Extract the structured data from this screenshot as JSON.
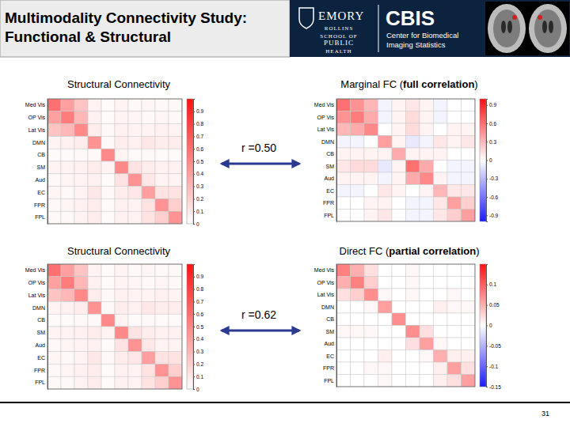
{
  "header": {
    "title": [
      "Multimodality Connectivity Study:",
      "Functional & Structural"
    ],
    "emory": "EMORY",
    "school": [
      "ROLLINS",
      "SCHOOL OF",
      "PUBLIC",
      "HEALTH"
    ],
    "center": "CBIS",
    "center_name": [
      "Center for Biomedical",
      "Imaging Statistics"
    ]
  },
  "chart_data": [
    {
      "type": "heatmap",
      "title": "Structural Connectivity",
      "categories": [
        "Med Vis",
        "OP Vis",
        "Lat Vis",
        "DMN",
        "CB",
        "SM",
        "Aud",
        "EC",
        "FPR",
        "FPL"
      ],
      "cells": [
        [
          0.6,
          0.4,
          0.25,
          0.05,
          0.02,
          0.05,
          0.03,
          0.04,
          0.03,
          0.03
        ],
        [
          0.4,
          0.55,
          0.3,
          0.06,
          0.02,
          0.05,
          0.04,
          0.03,
          0.04,
          0.03
        ],
        [
          0.25,
          0.3,
          0.5,
          0.08,
          0.03,
          0.06,
          0.05,
          0.05,
          0.06,
          0.05
        ],
        [
          0.05,
          0.06,
          0.08,
          0.45,
          0.03,
          0.08,
          0.06,
          0.1,
          0.08,
          0.08
        ],
        [
          0.02,
          0.02,
          0.03,
          0.03,
          0.5,
          0.05,
          0.02,
          0.03,
          0.02,
          0.02
        ],
        [
          0.05,
          0.05,
          0.06,
          0.08,
          0.05,
          0.5,
          0.12,
          0.08,
          0.06,
          0.06
        ],
        [
          0.03,
          0.04,
          0.05,
          0.06,
          0.02,
          0.12,
          0.45,
          0.1,
          0.05,
          0.05
        ],
        [
          0.04,
          0.03,
          0.05,
          0.1,
          0.03,
          0.08,
          0.1,
          0.4,
          0.12,
          0.12
        ],
        [
          0.03,
          0.04,
          0.06,
          0.08,
          0.02,
          0.06,
          0.05,
          0.12,
          0.45,
          0.2
        ],
        [
          0.03,
          0.03,
          0.05,
          0.08,
          0.02,
          0.06,
          0.05,
          0.12,
          0.2,
          0.45
        ]
      ],
      "colorbar": {
        "range": [
          0,
          1
        ],
        "ticks": [
          0,
          0.1,
          0.2,
          0.3,
          0.4,
          0.5,
          0.6,
          0.7,
          0.8,
          0.9
        ]
      }
    },
    {
      "type": "heatmap",
      "title": "Marginal FC (full correlation)",
      "categories": [
        "Med Vis",
        "OP Vis",
        "Lat Vis",
        "DMN",
        "CB",
        "SM",
        "Aud",
        "EC",
        "FPR",
        "FPL"
      ],
      "cells": [
        [
          0.6,
          0.45,
          0.3,
          -0.05,
          0.05,
          0.1,
          0.05,
          -0.05,
          0,
          0
        ],
        [
          0.45,
          0.55,
          0.35,
          -0.05,
          0.05,
          0.15,
          0.05,
          -0.05,
          0,
          0
        ],
        [
          0.3,
          0.35,
          0.5,
          0,
          0.05,
          0.15,
          0.05,
          0,
          0.05,
          0.05
        ],
        [
          -0.05,
          -0.05,
          0,
          0.4,
          0.05,
          -0.1,
          -0.05,
          0.1,
          0.05,
          0.1
        ],
        [
          0.05,
          0.05,
          0.05,
          0.05,
          0.35,
          0.05,
          0.05,
          0.05,
          0,
          0
        ],
        [
          0.1,
          0.15,
          0.15,
          -0.1,
          0.05,
          0.6,
          0.35,
          0,
          -0.05,
          -0.05
        ],
        [
          0.05,
          0.05,
          0.05,
          -0.05,
          0.05,
          0.35,
          0.5,
          0.05,
          -0.05,
          -0.05
        ],
        [
          -0.05,
          -0.05,
          0,
          0.1,
          0.05,
          0,
          0.05,
          0.3,
          0.1,
          0.1
        ],
        [
          0,
          0,
          0.05,
          0.05,
          0,
          -0.05,
          -0.05,
          0.1,
          0.4,
          0.2
        ],
        [
          0,
          0,
          0.05,
          0.1,
          0,
          -0.05,
          -0.05,
          0.1,
          0.2,
          0.4
        ]
      ],
      "colorbar": {
        "range": [
          -1,
          1
        ],
        "ticks": [
          -0.9,
          -0.6,
          -0.3,
          0,
          0.3,
          0.6,
          0.9
        ]
      }
    },
    {
      "type": "heatmap",
      "title": "Structural Connectivity",
      "categories": [
        "Med Vis",
        "OP Vis",
        "Lat Vis",
        "DMN",
        "CB",
        "SM",
        "Aud",
        "EC",
        "FPR",
        "FPL"
      ],
      "cells": [
        [
          0.6,
          0.4,
          0.25,
          0.05,
          0.02,
          0.05,
          0.03,
          0.04,
          0.03,
          0.03
        ],
        [
          0.4,
          0.55,
          0.3,
          0.06,
          0.02,
          0.05,
          0.04,
          0.03,
          0.04,
          0.03
        ],
        [
          0.25,
          0.3,
          0.5,
          0.08,
          0.03,
          0.06,
          0.05,
          0.05,
          0.06,
          0.05
        ],
        [
          0.05,
          0.06,
          0.08,
          0.45,
          0.03,
          0.08,
          0.06,
          0.1,
          0.08,
          0.08
        ],
        [
          0.02,
          0.02,
          0.03,
          0.03,
          0.5,
          0.05,
          0.02,
          0.03,
          0.02,
          0.02
        ],
        [
          0.05,
          0.05,
          0.06,
          0.08,
          0.05,
          0.5,
          0.12,
          0.08,
          0.06,
          0.06
        ],
        [
          0.03,
          0.04,
          0.05,
          0.06,
          0.02,
          0.12,
          0.45,
          0.1,
          0.05,
          0.05
        ],
        [
          0.04,
          0.03,
          0.05,
          0.1,
          0.03,
          0.08,
          0.1,
          0.4,
          0.12,
          0.12
        ],
        [
          0.03,
          0.04,
          0.06,
          0.08,
          0.02,
          0.06,
          0.05,
          0.12,
          0.45,
          0.2
        ],
        [
          0.03,
          0.03,
          0.05,
          0.08,
          0.02,
          0.06,
          0.05,
          0.12,
          0.2,
          0.45
        ]
      ],
      "colorbar": {
        "range": [
          0,
          1
        ],
        "ticks": [
          0,
          0.1,
          0.2,
          0.3,
          0.4,
          0.5,
          0.6,
          0.7,
          0.8,
          0.9
        ]
      }
    },
    {
      "type": "heatmap",
      "title": "Direct FC (partial correlation)",
      "categories": [
        "Med Vis",
        "OP Vis",
        "Lat Vis",
        "DMN",
        "CB",
        "SM",
        "Aud",
        "EC",
        "FPR",
        "FPL"
      ],
      "cells": [
        [
          0.08,
          0.05,
          0.02,
          0,
          0,
          0.005,
          0,
          0,
          0,
          0
        ],
        [
          0.05,
          0.08,
          0.03,
          0,
          0,
          0.005,
          0,
          0,
          0,
          0
        ],
        [
          0.02,
          0.03,
          0.07,
          0.005,
          0,
          0.005,
          0,
          0,
          0.005,
          0
        ],
        [
          0,
          0,
          0.005,
          0.06,
          0,
          0,
          0,
          0.01,
          0.005,
          0.005
        ],
        [
          0,
          0,
          0,
          0,
          0.07,
          0,
          0,
          0,
          0,
          0
        ],
        [
          0.005,
          0.005,
          0.005,
          0,
          0,
          0.07,
          0.02,
          0,
          0,
          0
        ],
        [
          0,
          0,
          0,
          0,
          0,
          0.02,
          0.06,
          0.005,
          0,
          0
        ],
        [
          0,
          0,
          0,
          0.01,
          0,
          0,
          0.005,
          0.05,
          0.01,
          0.01
        ],
        [
          0,
          0,
          0.005,
          0.005,
          0,
          0,
          0,
          0.01,
          0.06,
          0.02
        ],
        [
          0,
          0,
          0,
          0.005,
          0,
          0,
          0,
          0.01,
          0.02,
          0.06
        ]
      ],
      "colorbar": {
        "range": [
          -0.15,
          0.15
        ],
        "ticks": [
          -0.15,
          -0.1,
          -0.05,
          0,
          0.05,
          0.1
        ]
      }
    }
  ],
  "annotations": [
    {
      "text": "r =0.50"
    },
    {
      "text": "r =0.62"
    }
  ],
  "page_number": 31
}
